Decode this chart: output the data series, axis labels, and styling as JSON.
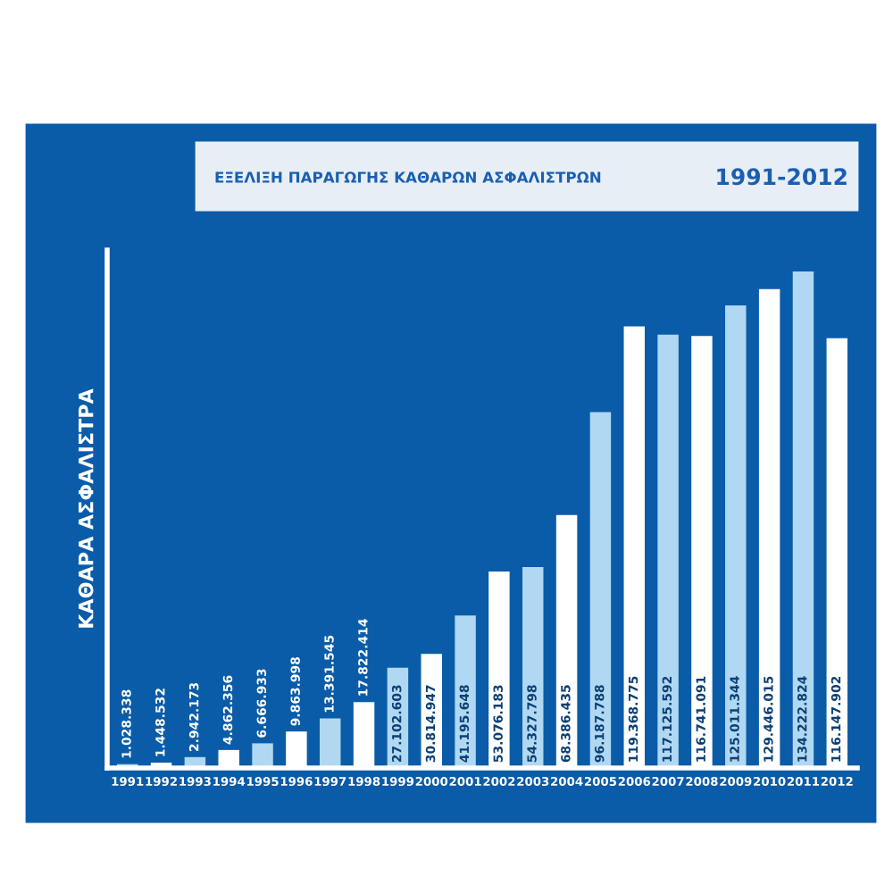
{
  "chart_data": {
    "type": "bar",
    "title": "ΕΞΕΛΙΞΗ ΠΑΡΑΓΩΓΗΣ ΚΑΘΑΡΩΝ ΑΣΦΑΛΙΣΤΡΩΝ",
    "subtitle": "1991-2012",
    "ylabel": "ΚΑΘΑΡΑ ΑΣΦΑΛΙΣΤΡΑ",
    "categories": [
      "1991",
      "1992",
      "1993",
      "1994",
      "1995",
      "1996",
      "1997",
      "1998",
      "1999",
      "2000",
      "2001",
      "2002",
      "2003",
      "2004",
      "2005",
      "2006",
      "2007",
      "2008",
      "2009",
      "2010",
      "2011",
      "2012"
    ],
    "values": [
      1028338,
      1448532,
      2942173,
      4862356,
      6666933,
      9863998,
      13391545,
      17822414,
      27102603,
      30814947,
      41195648,
      53076183,
      54327798,
      68386435,
      96187788,
      119368775,
      117125592,
      116741091,
      125011344,
      129446015,
      134222824,
      116147902
    ],
    "value_labels": [
      "1.028.338",
      "1.448.532",
      "2.942.173",
      "4.862.356",
      "6.666.933",
      "9.863.998",
      "13.391.545",
      "17.822.414",
      "27.102.603",
      "30.814.947",
      "41.195.648",
      "53.076.183",
      "54.327.798",
      "68.386.435",
      "96.187.788",
      "119.368.775",
      "117.125.592",
      "116.741.091",
      "125.011.344",
      "129.446.015",
      "134.222.824",
      "116.147.902"
    ],
    "colors": [
      "#b0d8f2",
      "#ffffff",
      "#b0d8f2",
      "#ffffff",
      "#b0d8f2",
      "#ffffff",
      "#b0d8f2",
      "#ffffff",
      "#b0d8f2",
      "#ffffff",
      "#b0d8f2",
      "#ffffff",
      "#b0d8f2",
      "#ffffff",
      "#b0d8f2",
      "#ffffff",
      "#b0d8f2",
      "#ffffff",
      "#b0d8f2",
      "#ffffff",
      "#b0d8f2",
      "#ffffff"
    ],
    "ylim": [
      0,
      140000000
    ],
    "tick_labels": "x",
    "grid": false,
    "legend": false
  }
}
